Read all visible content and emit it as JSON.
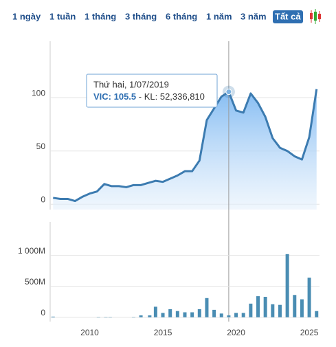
{
  "range_buttons": [
    "1 ngày",
    "1 tuần",
    "1 tháng",
    "3 tháng",
    "6 tháng",
    "1 năm",
    "3 năm",
    "Tất cả"
  ],
  "active_button": "Tất cả",
  "chart_data": [
    {
      "type": "area",
      "color": "#3c7bb0",
      "xlim": [
        2007.3,
        2025.7
      ],
      "ylim": [
        -5,
        153
      ],
      "yticks": [
        0,
        50,
        100
      ],
      "grid": true,
      "series": [
        {
          "name": "VIC",
          "color": "#3c7bb0",
          "x": [
            2007.5,
            2008,
            2008.5,
            2009,
            2009.5,
            2010,
            2010.5,
            2011,
            2011.5,
            2012,
            2012.5,
            2013,
            2013.5,
            2014,
            2014.5,
            2015,
            2015.5,
            2016,
            2016.5,
            2017,
            2017.5,
            2018,
            2018.5,
            2019,
            2019.5,
            2020,
            2020.5,
            2021,
            2021.5,
            2022,
            2022.5,
            2023,
            2023.5,
            2024,
            2024.5,
            2025,
            2025.5
          ],
          "values": [
            6,
            5,
            5,
            3,
            7,
            10,
            12,
            19,
            17,
            17,
            16,
            18,
            18,
            20,
            22,
            21,
            24,
            27,
            31,
            31,
            41,
            79,
            90,
            101,
            105.5,
            88,
            86,
            104,
            95,
            82,
            62,
            53,
            50,
            45,
            42,
            63,
            108
          ]
        }
      ],
      "tooltip": {
        "x": 2019.5,
        "date": "Thứ hai, 1/07/2019",
        "price_label": "VIC: 105.5",
        "volume_label": " - KL: 52,336,810"
      }
    },
    {
      "type": "bar",
      "color": "#4a8db3",
      "xlim": [
        2007.3,
        2025.7
      ],
      "ylim": [
        -70,
        1540
      ],
      "yticks": [
        0,
        {
          "value": 500,
          "label": "500M"
        },
        {
          "value": 1000,
          "label": "1 000M"
        }
      ],
      "xticks": [
        2010,
        2015,
        2020,
        2025
      ],
      "grid": true,
      "x": [
        2007.5,
        2010.6,
        2011.1,
        2011.4,
        2013.0,
        2013.5,
        2014.1,
        2014.5,
        2015.0,
        2015.5,
        2016.0,
        2016.5,
        2017.0,
        2017.5,
        2018.0,
        2018.5,
        2019.0,
        2019.5,
        2020.0,
        2020.5,
        2021.0,
        2021.5,
        2022.0,
        2022.5,
        2023.0,
        2023.5,
        2024.0,
        2024.5,
        2025.0,
        2025.5
      ],
      "values": [
        10,
        5,
        5,
        5,
        5,
        30,
        30,
        170,
        70,
        130,
        100,
        80,
        80,
        130,
        310,
        120,
        60,
        30,
        70,
        70,
        220,
        340,
        330,
        210,
        200,
        1020,
        360,
        290,
        640,
        100
      ]
    }
  ]
}
